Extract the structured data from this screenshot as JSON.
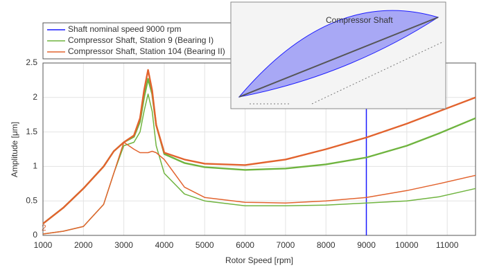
{
  "chart_data": {
    "type": "line",
    "xlabel": "Rotor Speed [rpm]",
    "ylabel": "Amplitude [μm]",
    "annotation": "2",
    "inset_label": "Compressor Shaft",
    "xlim": [
      1000,
      11700
    ],
    "ylim": [
      0,
      2.5
    ],
    "xticks": [
      1000,
      2000,
      3000,
      4000,
      5000,
      6000,
      7000,
      8000,
      9000,
      10000,
      11000
    ],
    "yticks": [
      0,
      0.5,
      1,
      1.5,
      2,
      2.5
    ],
    "grid": true,
    "legend": "upper left",
    "x": [
      1000,
      1500,
      2000,
      2500,
      2750,
      3000,
      3250,
      3400,
      3500,
      3600,
      3700,
      3800,
      4000,
      4500,
      5000,
      6000,
      7000,
      8000,
      9000,
      10000,
      10800,
      11700
    ],
    "series": [
      {
        "name": "Shaft nominal speed 9000 rpm",
        "color": "#1a1aff",
        "x": [
          9000,
          9000
        ],
        "values": [
          0,
          2.5
        ]
      },
      {
        "name": "Compressor Shaft, Station 9 (Bearing I)",
        "color": "#6fb43f",
        "values": [
          0.17,
          0.4,
          0.68,
          1.0,
          1.22,
          1.35,
          1.43,
          1.65,
          2.0,
          2.27,
          2.05,
          1.6,
          1.18,
          1.05,
          0.99,
          0.95,
          0.97,
          1.03,
          1.13,
          1.3,
          1.48,
          1.7
        ]
      },
      {
        "name": "Compressor Shaft, Station 104 (Bearing II)",
        "color": "#e2632e",
        "values": [
          0.17,
          0.4,
          0.68,
          1.0,
          1.22,
          1.35,
          1.45,
          1.7,
          2.1,
          2.4,
          2.1,
          1.6,
          1.2,
          1.1,
          1.04,
          1.02,
          1.1,
          1.25,
          1.42,
          1.62,
          1.8,
          2.0
        ]
      },
      {
        "color": "#6fb43f",
        "values": [
          0.02,
          0.06,
          0.13,
          0.45,
          0.9,
          1.3,
          1.35,
          1.5,
          1.8,
          2.05,
          1.8,
          1.3,
          0.9,
          0.6,
          0.5,
          0.43,
          0.43,
          0.44,
          0.47,
          0.5,
          0.56,
          0.68
        ]
      },
      {
        "color": "#e2632e",
        "values": [
          0.02,
          0.06,
          0.13,
          0.45,
          0.9,
          1.35,
          1.25,
          1.2,
          1.2,
          1.2,
          1.22,
          1.2,
          1.1,
          0.7,
          0.55,
          0.48,
          0.47,
          0.5,
          0.55,
          0.65,
          0.75,
          0.87
        ]
      }
    ]
  }
}
